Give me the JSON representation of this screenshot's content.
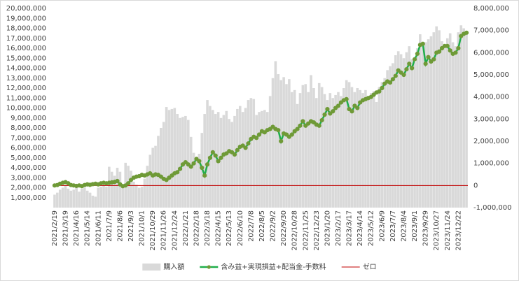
{
  "chart_data": {
    "type": "combo",
    "categories": [
      "2021/2/19",
      null,
      null,
      null,
      "2021/3/19",
      null,
      null,
      null,
      "2021/4/16",
      null,
      null,
      null,
      "2021/5/14",
      null,
      null,
      null,
      "2021/6/11",
      null,
      null,
      null,
      "2021/7/9",
      null,
      null,
      null,
      "2021/8/6",
      null,
      null,
      null,
      "2021/9/3",
      null,
      null,
      null,
      "2021/10/1",
      null,
      null,
      null,
      "2021/10/29",
      null,
      null,
      null,
      "2021/11/26",
      null,
      null,
      null,
      "2021/12/24",
      null,
      null,
      null,
      "2022/1/21",
      null,
      null,
      null,
      "2022/2/18",
      null,
      null,
      null,
      "2022/3/18",
      null,
      null,
      null,
      "2022/4/15",
      null,
      null,
      null,
      "2022/5/13",
      null,
      null,
      null,
      "2022/6/10",
      null,
      null,
      null,
      "2022/7/8",
      null,
      null,
      null,
      "2022/8/5",
      null,
      null,
      null,
      "2022/9/2",
      null,
      null,
      null,
      "2022/9/30",
      null,
      null,
      null,
      "2022/10/28",
      null,
      null,
      null,
      "2022/11/25",
      null,
      null,
      null,
      "2022/12/23",
      null,
      null,
      null,
      "2023/1/20",
      null,
      null,
      null,
      "2023/2/17",
      null,
      null,
      null,
      "2023/3/17",
      null,
      null,
      null,
      "2023/4/14",
      null,
      null,
      null,
      "2023/5/12",
      null,
      null,
      null,
      "2023/6/9",
      null,
      null,
      null,
      "2023/7/7",
      null,
      null,
      null,
      "2023/8/4",
      null,
      null,
      null,
      "2023/9/1",
      null,
      null,
      null,
      "2023/9/29",
      null,
      null,
      null,
      "2023/10/27",
      null,
      null,
      null,
      "2023/11/24",
      null,
      null,
      null,
      "2023/12/22",
      null,
      null,
      null
    ],
    "series": [
      {
        "name": "購入額",
        "type": "bar",
        "color": "#d9d9d9",
        "values": [
          1300000,
          1500000,
          1800000,
          2000000,
          2200000,
          1900000,
          1700000,
          1800000,
          2100000,
          1600000,
          1900000,
          2000000,
          1700000,
          1500000,
          1200000,
          1100000,
          2000000,
          2100000,
          2200000,
          2100000,
          4100000,
          3600000,
          3200000,
          4000000,
          3600000,
          2200000,
          4500000,
          4200000,
          3700000,
          2600000,
          2300000,
          2000000,
          2100000,
          2900000,
          4200000,
          5300000,
          6000000,
          6200000,
          7200000,
          8000000,
          8600000,
          10100000,
          9800000,
          9900000,
          10000000,
          9400000,
          9000000,
          9100000,
          9200000,
          8800000,
          7100000,
          5500000,
          5000000,
          5400000,
          7500000,
          9400000,
          10800000,
          10200000,
          9800000,
          9400000,
          9600000,
          9000000,
          9300000,
          9700000,
          8900000,
          8600000,
          9200000,
          9900000,
          10200000,
          9600000,
          10000000,
          10800000,
          11000000,
          10900000,
          9300000,
          9600000,
          9700000,
          9800000,
          9600000,
          11200000,
          13000000,
          14700000,
          13400000,
          12800000,
          13100000,
          12400000,
          12900000,
          11600000,
          11800000,
          10400000,
          11500000,
          12300000,
          12400000,
          11600000,
          13300000,
          12000000,
          11000000,
          12500000,
          12100000,
          11400000,
          10800000,
          11500000,
          11000000,
          11300000,
          11600000,
          11200000,
          12000000,
          12800000,
          12600000,
          12100000,
          11600000,
          12000000,
          11800000,
          11500000,
          11800000,
          11200000,
          11500000,
          11700000,
          10600000,
          12100000,
          12600000,
          13000000,
          13800000,
          14200000,
          14500000,
          15300000,
          15700000,
          15400000,
          15000000,
          15600000,
          16200000,
          14900000,
          14600000,
          16000000,
          17400000,
          16200000,
          16600000,
          16900000,
          17200000,
          17600000,
          18200000,
          17800000,
          16700000,
          16400000,
          17000000,
          17500000,
          16600000,
          16200000,
          17600000,
          18300000,
          18000000,
          17700000
        ]
      },
      {
        "name": "含み益+実現損益+配当金-手数料",
        "type": "line",
        "axis": "y2",
        "color": "#1fae4a",
        "marker_color": "#6f9a37",
        "values": [
          0,
          20000,
          80000,
          120000,
          150000,
          100000,
          20000,
          0,
          -20000,
          0,
          -30000,
          20000,
          50000,
          30000,
          60000,
          80000,
          50000,
          100000,
          120000,
          100000,
          120000,
          140000,
          160000,
          200000,
          50000,
          -30000,
          0,
          100000,
          250000,
          350000,
          400000,
          420000,
          480000,
          450000,
          500000,
          550000,
          450000,
          500000,
          480000,
          400000,
          300000,
          250000,
          350000,
          450000,
          550000,
          600000,
          750000,
          950000,
          1050000,
          950000,
          850000,
          1000000,
          1200000,
          1100000,
          800000,
          450000,
          950000,
          1250000,
          1500000,
          1350000,
          1100000,
          1250000,
          1400000,
          1450000,
          1550000,
          1500000,
          1400000,
          1600000,
          1750000,
          1800000,
          1700000,
          1900000,
          2100000,
          2200000,
          2150000,
          2300000,
          2450000,
          2400000,
          2500000,
          2550000,
          2650000,
          2550000,
          2500000,
          2000000,
          2350000,
          2300000,
          2200000,
          2300000,
          2450000,
          2550000,
          2700000,
          2900000,
          2700000,
          2800000,
          2900000,
          2850000,
          2750000,
          2700000,
          2950000,
          3200000,
          3450000,
          3250000,
          3350000,
          3500000,
          3600000,
          3750000,
          3850000,
          3900000,
          3450000,
          3350000,
          3600000,
          3500000,
          3750000,
          3850000,
          3900000,
          3950000,
          4000000,
          4100000,
          4200000,
          4250000,
          4400000,
          4600000,
          4700000,
          4650000,
          4800000,
          4950000,
          5200000,
          5100000,
          5000000,
          5250000,
          5500000,
          5300000,
          5700000,
          5950000,
          6350000,
          6400000,
          5500000,
          5800000,
          5600000,
          5700000,
          6000000,
          6050000,
          6200000,
          6300000,
          6300000,
          6100000,
          5950000,
          6000000,
          6200000,
          6750000,
          6850000,
          6900000
        ]
      }
    ],
    "hlines": [
      {
        "name": "ゼロ",
        "value": 0,
        "axis": "y2",
        "color": "#c00000"
      }
    ],
    "ylim": [
      0,
      20000000
    ],
    "yticks": [
      {
        "value": 1000000,
        "label": "1,000,000"
      },
      {
        "value": 2000000,
        "label": "2,000,000"
      },
      {
        "value": 3000000,
        "label": "3,000,000"
      },
      {
        "value": 4000000,
        "label": "4,000,000"
      },
      {
        "value": 5000000,
        "label": "5,000,000"
      },
      {
        "value": 6000000,
        "label": "6,000,000"
      },
      {
        "value": 7000000,
        "label": "7,000,000"
      },
      {
        "value": 8000000,
        "label": "8,000,000"
      },
      {
        "value": 9000000,
        "label": "9,000,000"
      },
      {
        "value": 10000000,
        "label": "10,000,000"
      },
      {
        "value": 11000000,
        "label": "11,000,000"
      },
      {
        "value": 12000000,
        "label": "12,000,000"
      },
      {
        "value": 13000000,
        "label": "13,000,000"
      },
      {
        "value": 14000000,
        "label": "14,000,000"
      },
      {
        "value": 15000000,
        "label": "15,000,000"
      },
      {
        "value": 16000000,
        "label": "16,000,000"
      },
      {
        "value": 17000000,
        "label": "17,000,000"
      },
      {
        "value": 18000000,
        "label": "18,000,000"
      },
      {
        "value": 19000000,
        "label": "19,000,000"
      },
      {
        "value": 20000000,
        "label": "20,000,000"
      }
    ],
    "y2lim": [
      -1000000,
      8000000
    ],
    "y2ticks": [
      {
        "value": -1000000,
        "label": "-1,000,000"
      },
      0,
      {
        "value": 1000000,
        "label": "1,000,000"
      },
      {
        "value": 2000000,
        "label": "2,000,000"
      },
      {
        "value": 3000000,
        "label": "3,000,000"
      },
      {
        "value": 4000000,
        "label": "4,000,000"
      },
      {
        "value": 5000000,
        "label": "5,000,000"
      },
      {
        "value": 6000000,
        "label": "6,000,000"
      },
      {
        "value": 7000000,
        "label": "7,000,000"
      },
      {
        "value": 8000000,
        "label": "8,000,000"
      }
    ],
    "legend": "bottom"
  }
}
